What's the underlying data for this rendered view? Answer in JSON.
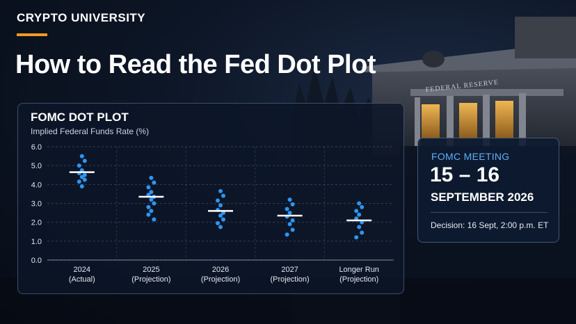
{
  "header": {
    "brand": "CRYPTO UNIVERSITY",
    "title": "How to Read the Fed Dot Plot"
  },
  "background": {
    "building_sign": "FEDERAL RESERVE"
  },
  "meeting": {
    "label": "FOMC MEETING",
    "days": "15 – 16",
    "month_year": "SEPTEMBER 2026",
    "decision": "Decision: 16 Sept, 2:00 p.m. ET"
  },
  "colors": {
    "accent": "#f39a1f",
    "dot": "#2f95f0",
    "median": "#ffffff",
    "meeting_label": "#5fb0f5"
  },
  "chart_data": {
    "type": "scatter",
    "title": "FOMC DOT PLOT",
    "ylabel": "Implied Federal Funds Rate (%)",
    "ylim": [
      0,
      6
    ],
    "yticks": [
      "0.0",
      "1.0",
      "2.0",
      "3.0",
      "4.0",
      "5.0",
      "6.0"
    ],
    "grid": true,
    "categories": [
      {
        "line1": "2024",
        "line2": "(Actual)"
      },
      {
        "line1": "2025",
        "line2": "(Projection)"
      },
      {
        "line1": "2026",
        "line2": "(Projection)"
      },
      {
        "line1": "2027",
        "line2": "(Projection)"
      },
      {
        "line1": "Longer Run",
        "line2": "(Projection)"
      }
    ],
    "series": [
      {
        "dots": [
          5.5,
          5.25,
          5.0,
          4.75,
          4.6,
          4.5,
          4.4,
          4.25,
          4.15,
          3.9
        ],
        "median": 4.65
      },
      {
        "dots": [
          4.35,
          4.1,
          3.85,
          3.6,
          3.45,
          3.35,
          3.2,
          3.0,
          2.8,
          2.6,
          2.4,
          2.15
        ],
        "median": 3.35
      },
      {
        "dots": [
          3.65,
          3.4,
          3.15,
          2.9,
          2.65,
          2.5,
          2.35,
          2.15,
          1.95,
          1.75
        ],
        "median": 2.6
      },
      {
        "dots": [
          3.2,
          2.95,
          2.7,
          2.5,
          2.3,
          2.1,
          1.9,
          1.6,
          1.35
        ],
        "median": 2.35
      },
      {
        "dots": [
          3.0,
          2.8,
          2.6,
          2.4,
          2.2,
          2.0,
          1.75,
          1.45,
          1.2
        ],
        "median": 2.1
      }
    ]
  }
}
